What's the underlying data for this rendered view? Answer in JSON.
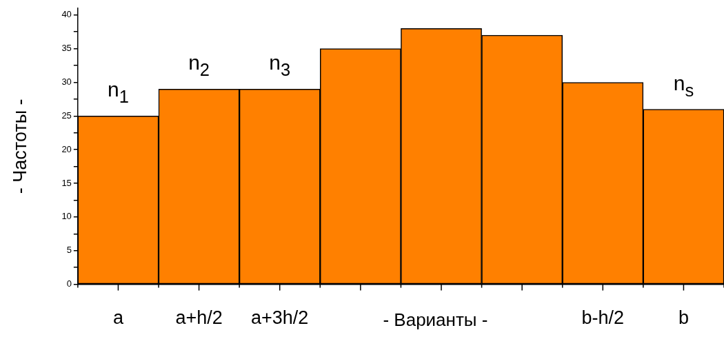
{
  "chart_data": {
    "type": "bar",
    "xlabel": "- Варианты -",
    "ylabel": "- Частоты -",
    "categories": [
      "a",
      "a+h/2",
      "a+3h/2",
      null,
      null,
      null,
      "b-h/2",
      "b"
    ],
    "values": [
      25,
      29,
      29,
      35,
      38,
      37,
      30,
      26
    ],
    "color": "#ff8000",
    "ylim": [
      0,
      41
    ],
    "yticks": [
      0,
      {
        "value": 2.5,
        "label": null
      },
      5,
      {
        "value": 7.5,
        "label": null
      },
      10,
      {
        "value": 12.5,
        "label": null
      },
      15,
      {
        "value": 17.5,
        "label": null
      },
      20,
      {
        "value": 22.5,
        "label": null
      },
      25,
      {
        "value": 27.5,
        "label": null
      },
      30,
      {
        "value": 32.5,
        "label": null
      },
      35,
      {
        "value": 37.5,
        "label": null
      },
      40
    ],
    "grid": false,
    "legend": false,
    "annotations": [
      {
        "text": "n$_{1}$",
        "x": "a",
        "y": 25
      },
      {
        "text": "n$_{2}$",
        "x": "a+h/2",
        "y": 29
      },
      {
        "text": "n$_{3}$",
        "x": "a+3h/2",
        "y": 29
      },
      {
        "text": "n$_{s}$",
        "x": "b",
        "y": 26
      }
    ]
  }
}
